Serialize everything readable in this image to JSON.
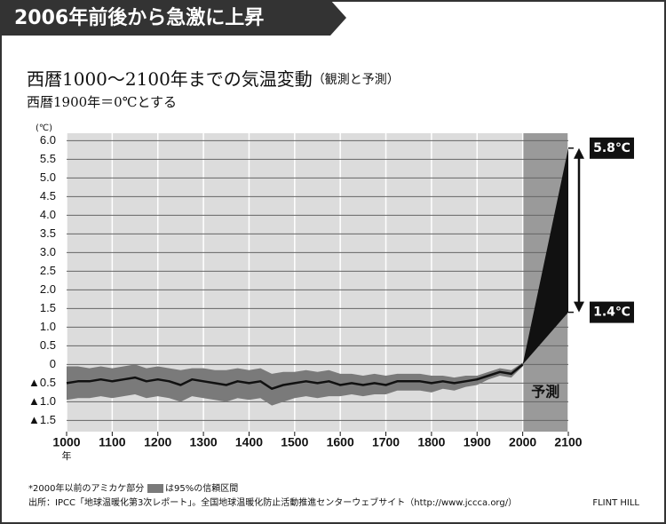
{
  "chart_data": {
    "type": "line",
    "banner": "2006年前後から急激に上昇",
    "title": "西暦1000〜2100年までの気温変動",
    "title_note": "（観測と予測）",
    "subtitle": "西暦1900年＝0℃とする",
    "y_unit": "(℃)",
    "x_unit": "年",
    "xlim": [
      1000,
      2100
    ],
    "xticks": [
      1000,
      1100,
      1200,
      1300,
      1400,
      1500,
      1600,
      1700,
      1800,
      1900,
      2000,
      2100
    ],
    "ylim": [
      -1.8,
      6.2
    ],
    "yticks": [
      {
        "value": 6,
        "label": "6.0"
      },
      5.5,
      {
        "value": 5,
        "label": "5.0"
      },
      4.5,
      {
        "value": 4,
        "label": "4.0"
      },
      3.5,
      {
        "value": 3,
        "label": "3.0"
      },
      2.5,
      {
        "value": 2,
        "label": "2.0"
      },
      1.5,
      {
        "value": 1,
        "label": "1.0"
      },
      0.5,
      0,
      {
        "value": -0.5,
        "label": "▲0.5"
      },
      {
        "value": -1,
        "label": "▲1.0"
      },
      {
        "value": -1.5,
        "label": "▲1.5"
      }
    ],
    "grid": true,
    "x": [
      1000,
      1025,
      1050,
      1075,
      1100,
      1125,
      1150,
      1175,
      1200,
      1225,
      1250,
      1275,
      1300,
      1325,
      1350,
      1375,
      1400,
      1425,
      1450,
      1475,
      1500,
      1525,
      1550,
      1575,
      1600,
      1625,
      1650,
      1675,
      1700,
      1725,
      1750,
      1775,
      1800,
      1825,
      1850,
      1875,
      1900,
      1925,
      1950,
      1975,
      2000
    ],
    "series": [
      {
        "name": "観測",
        "color": "#111111",
        "values": [
          -0.5,
          -0.45,
          -0.45,
          -0.4,
          -0.45,
          -0.4,
          -0.35,
          -0.45,
          -0.4,
          -0.45,
          -0.55,
          -0.4,
          -0.45,
          -0.5,
          -0.55,
          -0.45,
          -0.5,
          -0.45,
          -0.65,
          -0.55,
          -0.5,
          -0.45,
          -0.5,
          -0.45,
          -0.55,
          -0.5,
          -0.55,
          -0.5,
          -0.55,
          -0.45,
          -0.45,
          -0.45,
          -0.5,
          -0.45,
          -0.5,
          -0.45,
          -0.4,
          -0.3,
          -0.2,
          -0.25,
          0
        ]
      }
    ],
    "band": {
      "color": "#7a7a7a",
      "upper": [
        -0.05,
        -0.05,
        -0.1,
        -0.05,
        -0.1,
        -0.05,
        0,
        -0.1,
        -0.05,
        -0.1,
        -0.15,
        -0.1,
        -0.1,
        -0.15,
        -0.15,
        -0.1,
        -0.15,
        -0.1,
        -0.25,
        -0.2,
        -0.2,
        -0.15,
        -0.2,
        -0.15,
        -0.25,
        -0.25,
        -0.3,
        -0.25,
        -0.3,
        -0.25,
        -0.25,
        -0.25,
        -0.3,
        -0.3,
        -0.35,
        -0.3,
        -0.3,
        -0.2,
        -0.1,
        -0.15,
        0.05
      ],
      "lower": [
        -0.95,
        -0.9,
        -0.9,
        -0.85,
        -0.9,
        -0.85,
        -0.8,
        -0.9,
        -0.85,
        -0.9,
        -1.0,
        -0.85,
        -0.9,
        -0.95,
        -1.0,
        -0.9,
        -0.95,
        -0.9,
        -1.1,
        -1.0,
        -0.9,
        -0.85,
        -0.9,
        -0.85,
        -0.85,
        -0.8,
        -0.85,
        -0.8,
        -0.8,
        -0.7,
        -0.7,
        -0.7,
        -0.75,
        -0.65,
        -0.7,
        -0.6,
        -0.55,
        -0.4,
        -0.3,
        -0.35,
        -0.05
      ]
    },
    "projection": {
      "name": "予測",
      "color": "#111111",
      "region_color": "#9a9a9a",
      "x": [
        2000,
        2100
      ],
      "low": [
        0,
        1.4
      ],
      "high": [
        0,
        5.8
      ],
      "low_label": "1.4℃",
      "high_label": "5.8℃"
    },
    "notes": [
      "*2000年以前のアミカケ部分",
      "は95%の信頼区間",
      "出所：IPCC「地球温暖化第3次レポート」。全国地球温暖化防止活動推進センターウェブサイト（http://www.jccca.org/）"
    ],
    "credit": "FLINT HILL"
  }
}
